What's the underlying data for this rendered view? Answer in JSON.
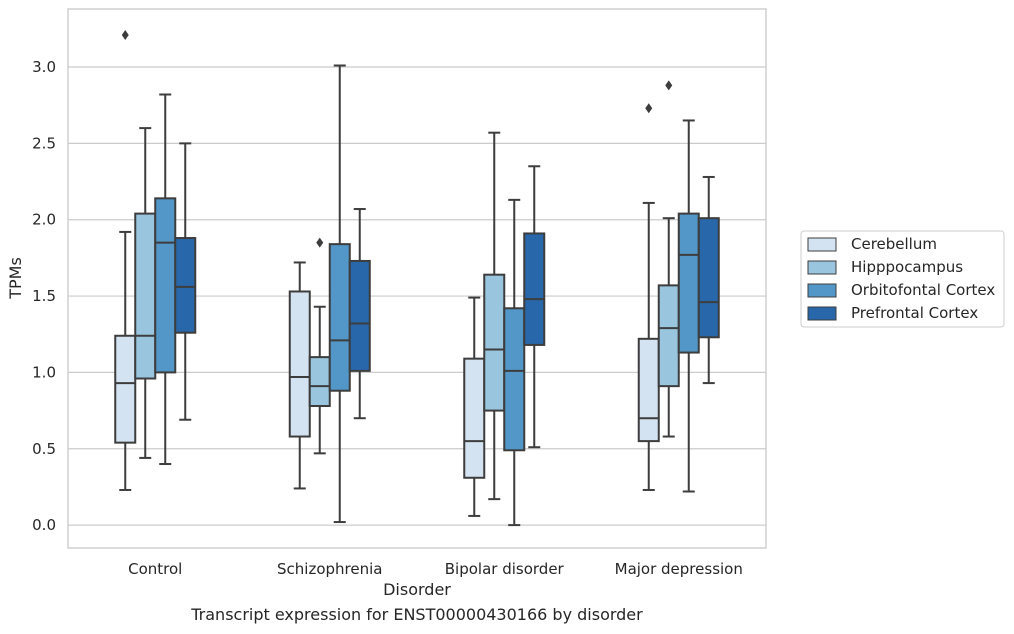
{
  "chart_data": {
    "type": "box",
    "caption": "Transcript expression for ENST00000430166 by disorder",
    "xlabel": "Disorder",
    "ylabel": "TPMs",
    "ylim": [
      -0.15,
      3.38
    ],
    "yticks": [
      0.0,
      0.5,
      1.0,
      1.5,
      2.0,
      2.5,
      3.0
    ],
    "ytick_labels": [
      "0.0",
      "0.5",
      "1.0",
      "1.5",
      "2.0",
      "2.5",
      "3.0"
    ],
    "grid": true,
    "legend_position": "right",
    "categories": [
      "Control",
      "Schizophrenia",
      "Bipolar disorder",
      "Major depression"
    ],
    "series": [
      {
        "name": "Cerebellum",
        "color": "#d4e3f2",
        "boxes": [
          {
            "whisker_low": 0.23,
            "q1": 0.54,
            "median": 0.93,
            "q3": 1.24,
            "whisker_high": 1.92,
            "outliers": [
              3.21
            ]
          },
          {
            "whisker_low": 0.24,
            "q1": 0.58,
            "median": 0.97,
            "q3": 1.53,
            "whisker_high": 1.72,
            "outliers": []
          },
          {
            "whisker_low": 0.06,
            "q1": 0.31,
            "median": 0.55,
            "q3": 1.09,
            "whisker_high": 1.49,
            "outliers": []
          },
          {
            "whisker_low": 0.23,
            "q1": 0.55,
            "median": 0.7,
            "q3": 1.22,
            "whisker_high": 2.11,
            "outliers": [
              2.73
            ]
          }
        ]
      },
      {
        "name": "Hipppocampus",
        "color": "#99c5de",
        "boxes": [
          {
            "whisker_low": 0.44,
            "q1": 0.96,
            "median": 1.24,
            "q3": 2.04,
            "whisker_high": 2.6,
            "outliers": []
          },
          {
            "whisker_low": 0.47,
            "q1": 0.78,
            "median": 0.91,
            "q3": 1.1,
            "whisker_high": 1.43,
            "outliers": [
              1.85
            ]
          },
          {
            "whisker_low": 0.17,
            "q1": 0.75,
            "median": 1.15,
            "q3": 1.64,
            "whisker_high": 2.57,
            "outliers": []
          },
          {
            "whisker_low": 0.58,
            "q1": 0.91,
            "median": 1.29,
            "q3": 1.57,
            "whisker_high": 2.01,
            "outliers": [
              2.88
            ]
          }
        ]
      },
      {
        "name": "Orbitofontal Cortex",
        "color": "#5297c7",
        "boxes": [
          {
            "whisker_low": 0.4,
            "q1": 1.0,
            "median": 1.85,
            "q3": 2.14,
            "whisker_high": 2.82,
            "outliers": []
          },
          {
            "whisker_low": 0.02,
            "q1": 0.88,
            "median": 1.21,
            "q3": 1.84,
            "whisker_high": 3.01,
            "outliers": []
          },
          {
            "whisker_low": 0.0,
            "q1": 0.49,
            "median": 1.01,
            "q3": 1.42,
            "whisker_high": 2.13,
            "outliers": []
          },
          {
            "whisker_low": 0.22,
            "q1": 1.13,
            "median": 1.77,
            "q3": 2.04,
            "whisker_high": 2.65,
            "outliers": []
          }
        ]
      },
      {
        "name": "Prefrontal Cortex",
        "color": "#2867a9",
        "boxes": [
          {
            "whisker_low": 0.69,
            "q1": 1.26,
            "median": 1.56,
            "q3": 1.88,
            "whisker_high": 2.5,
            "outliers": []
          },
          {
            "whisker_low": 0.7,
            "q1": 1.01,
            "median": 1.32,
            "q3": 1.73,
            "whisker_high": 2.07,
            "outliers": []
          },
          {
            "whisker_low": 0.51,
            "q1": 1.18,
            "median": 1.48,
            "q3": 1.91,
            "whisker_high": 2.35,
            "outliers": []
          },
          {
            "whisker_low": 0.93,
            "q1": 1.23,
            "median": 1.46,
            "q3": 2.01,
            "whisker_high": 2.28,
            "outliers": []
          }
        ]
      }
    ]
  }
}
